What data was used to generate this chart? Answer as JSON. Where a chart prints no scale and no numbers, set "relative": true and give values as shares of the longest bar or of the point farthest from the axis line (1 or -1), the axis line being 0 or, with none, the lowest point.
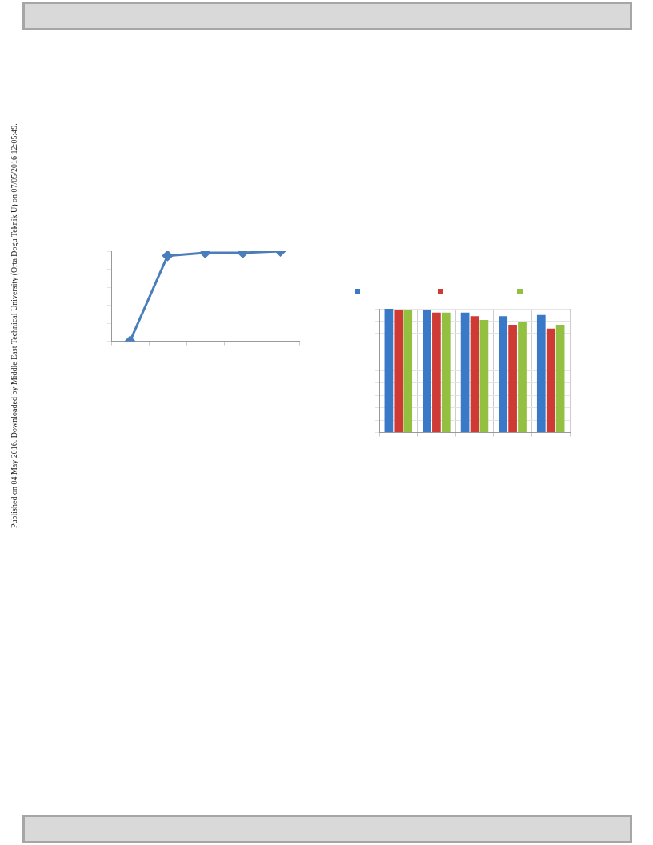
{
  "chart_data": [
    {
      "type": "line",
      "relative": true,
      "categories": [
        null,
        null,
        null,
        null,
        null
      ],
      "marker": "diamond",
      "grid": false,
      "series": [
        {
          "color": "#4a7ebb",
          "values": [
            0,
            0.95,
            0.983,
            0.983,
            1
          ]
        }
      ],
      "annotations": [
        "Published on 04 May 2016. Downloaded by Middle East Technical University (Orta Dogu Teknik U) on 07/05/2016 12:05:49."
      ]
    },
    {
      "type": "bar",
      "relative": true,
      "categories": [
        null,
        null,
        null,
        null,
        null
      ],
      "grid": true,
      "series": [
        {
          "color": "#3a78c8",
          "values": [
            1,
            0.99,
            0.97,
            0.94,
            0.95
          ]
        },
        {
          "color": "#d03a35",
          "values": [
            0.99,
            0.97,
            0.94,
            0.87,
            0.84
          ]
        },
        {
          "color": "#93c040",
          "values": [
            0.99,
            0.97,
            0.91,
            0.89,
            0.87
          ]
        }
      ]
    }
  ]
}
